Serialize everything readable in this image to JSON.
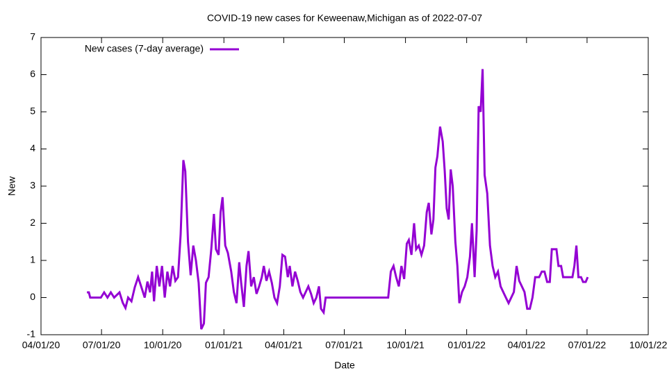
{
  "chart_data": {
    "type": "line",
    "title": "COVID-19 new cases for Keweenaw,Michigan as of 2022-07-07",
    "x_label": "Date",
    "y_label": "New",
    "xlim": [
      "2020-04-01",
      "2022-10-01"
    ],
    "xticks": [
      {
        "value": "2020-04-01",
        "label": "04/01/20"
      },
      {
        "value": "2020-07-01",
        "label": "07/01/20"
      },
      {
        "value": "2020-10-01",
        "label": "10/01/20"
      },
      {
        "value": "2021-01-01",
        "label": "01/01/21"
      },
      {
        "value": "2021-04-01",
        "label": "04/01/21"
      },
      {
        "value": "2021-07-01",
        "label": "07/01/21"
      },
      {
        "value": "2021-10-01",
        "label": "10/01/21"
      },
      {
        "value": "2022-01-01",
        "label": "01/01/22"
      },
      {
        "value": "2022-04-01",
        "label": "04/01/22"
      },
      {
        "value": "2022-07-01",
        "label": "07/01/22"
      },
      {
        "value": "2022-10-01",
        "label": "10/01/22"
      }
    ],
    "ylim": [
      -1,
      7
    ],
    "yticks": [
      -1,
      0,
      1,
      2,
      3,
      4,
      5,
      6,
      7
    ],
    "legend": "top-left",
    "x": [
      "2020-06-09",
      "2020-06-12",
      "2020-06-14",
      "2020-06-30",
      "2020-07-05",
      "2020-07-10",
      "2020-07-15",
      "2020-07-20",
      "2020-07-28",
      "2020-08-02",
      "2020-08-06",
      "2020-08-10",
      "2020-08-15",
      "2020-08-20",
      "2020-08-25",
      "2020-08-30",
      "2020-09-04",
      "2020-09-08",
      "2020-09-12",
      "2020-09-15",
      "2020-09-18",
      "2020-09-22",
      "2020-09-26",
      "2020-09-30",
      "2020-10-04",
      "2020-10-08",
      "2020-10-12",
      "2020-10-16",
      "2020-10-20",
      "2020-10-24",
      "2020-10-28",
      "2020-11-01",
      "2020-11-04",
      "2020-11-08",
      "2020-11-12",
      "2020-11-16",
      "2020-11-20",
      "2020-11-24",
      "2020-11-28",
      "2020-12-02",
      "2020-12-05",
      "2020-12-09",
      "2020-12-13",
      "2020-12-17",
      "2020-12-20",
      "2020-12-24",
      "2020-12-27",
      "2020-12-30",
      "2021-01-03",
      "2021-01-07",
      "2021-01-12",
      "2021-01-16",
      "2021-01-20",
      "2021-01-24",
      "2021-01-27",
      "2021-01-31",
      "2021-02-04",
      "2021-02-07",
      "2021-02-11",
      "2021-02-15",
      "2021-02-19",
      "2021-02-23",
      "2021-02-27",
      "2021-03-02",
      "2021-03-06",
      "2021-03-10",
      "2021-03-14",
      "2021-03-18",
      "2021-03-22",
      "2021-03-26",
      "2021-03-30",
      "2021-04-03",
      "2021-04-07",
      "2021-04-10",
      "2021-04-14",
      "2021-04-18",
      "2021-04-22",
      "2021-04-26",
      "2021-04-30",
      "2021-05-04",
      "2021-05-08",
      "2021-05-12",
      "2021-05-16",
      "2021-05-20",
      "2021-05-24",
      "2021-05-27",
      "2021-05-31",
      "2021-06-03",
      "2021-09-05",
      "2021-09-09",
      "2021-09-13",
      "2021-09-17",
      "2021-09-21",
      "2021-09-25",
      "2021-09-29",
      "2021-10-03",
      "2021-10-06",
      "2021-10-10",
      "2021-10-14",
      "2021-10-17",
      "2021-10-21",
      "2021-10-25",
      "2021-10-29",
      "2021-11-02",
      "2021-11-05",
      "2021-11-09",
      "2021-11-12",
      "2021-11-15",
      "2021-11-18",
      "2021-11-22",
      "2021-11-26",
      "2021-11-29",
      "2021-12-02",
      "2021-12-05",
      "2021-12-08",
      "2021-12-11",
      "2021-12-15",
      "2021-12-18",
      "2021-12-21",
      "2021-12-25",
      "2021-12-29",
      "2022-01-02",
      "2022-01-06",
      "2022-01-09",
      "2022-01-13",
      "2022-01-16",
      "2022-01-19",
      "2022-01-22",
      "2022-01-25",
      "2022-01-28",
      "2022-02-01",
      "2022-02-05",
      "2022-02-09",
      "2022-02-13",
      "2022-02-17",
      "2022-02-21",
      "2022-02-25",
      "2022-03-01",
      "2022-03-05",
      "2022-03-09",
      "2022-03-13",
      "2022-03-17",
      "2022-03-21",
      "2022-03-25",
      "2022-03-29",
      "2022-04-02",
      "2022-04-06",
      "2022-04-10",
      "2022-04-14",
      "2022-04-20",
      "2022-04-24",
      "2022-04-28",
      "2022-05-02",
      "2022-05-06",
      "2022-05-09",
      "2022-05-16",
      "2022-05-19",
      "2022-05-23",
      "2022-05-26",
      "2022-06-09",
      "2022-06-12",
      "2022-06-15",
      "2022-06-18",
      "2022-06-22",
      "2022-06-25",
      "2022-06-29",
      "2022-07-02"
    ],
    "series": [
      {
        "name": "New cases (7-day average)",
        "color": "#9400d3",
        "values": [
          0.14,
          0.14,
          0,
          0,
          0.14,
          0,
          0.14,
          0,
          0.14,
          -0.14,
          -0.28,
          0,
          -0.1,
          0.28,
          0.55,
          0.28,
          0,
          0.43,
          0.14,
          0.7,
          -0.1,
          0.85,
          0.3,
          0.85,
          0,
          0.7,
          0.3,
          0.85,
          0.45,
          0.55,
          1.7,
          3.7,
          3.4,
          1.5,
          0.6,
          1.4,
          1.0,
          0.4,
          -0.85,
          -0.7,
          0.4,
          0.55,
          1.3,
          2.25,
          1.3,
          1.15,
          2.3,
          2.7,
          1.4,
          1.2,
          0.7,
          0.15,
          -0.15,
          0.95,
          0.4,
          -0.25,
          0.85,
          1.25,
          0.3,
          0.55,
          0.1,
          0.3,
          0.55,
          0.85,
          0.45,
          0.7,
          0.4,
          0,
          -0.15,
          0.3,
          1.15,
          1.1,
          0.55,
          0.85,
          0.3,
          0.7,
          0.45,
          0.15,
          0,
          0.15,
          0.3,
          0.1,
          -0.15,
          0,
          0.3,
          -0.3,
          -0.4,
          0,
          0,
          0.7,
          0.85,
          0.55,
          0.3,
          0.85,
          0.5,
          1.45,
          1.55,
          1.15,
          2.0,
          1.3,
          1.4,
          1.15,
          1.4,
          2.3,
          2.55,
          1.7,
          2.1,
          3.5,
          3.8,
          4.6,
          4.2,
          3.4,
          2.4,
          2.1,
          3.45,
          3.0,
          1.5,
          0.85,
          -0.15,
          0.15,
          0.3,
          0.55,
          1.1,
          2.0,
          0.55,
          1.8,
          5.15,
          5.0,
          6.15,
          3.3,
          2.8,
          1.4,
          0.85,
          0.55,
          0.7,
          0.3,
          0.15,
          0,
          -0.15,
          0,
          0.15,
          0.85,
          0.45,
          0.3,
          0.15,
          -0.3,
          -0.3,
          0,
          0.55,
          0.55,
          0.7,
          0.7,
          0.42,
          0.42,
          1.3,
          1.3,
          0.85,
          0.85,
          0.55,
          0.55,
          0.85,
          1.4,
          0.55,
          0.55,
          0.42,
          0.42,
          0.55
        ]
      }
    ]
  }
}
